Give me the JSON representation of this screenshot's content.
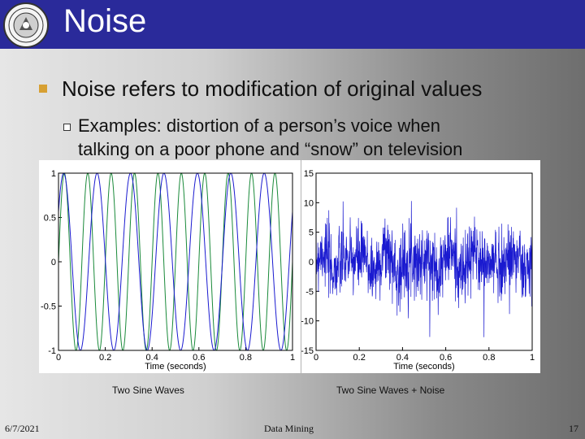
{
  "header": {
    "title": "Noise"
  },
  "bullets": {
    "main": "Noise refers to modification of original values",
    "sub_line1": "Examples: distortion of a person’s voice when",
    "sub_line2": "talking on a poor phone and “snow” on television"
  },
  "captions": {
    "left": "Two Sine Waves",
    "right": "Two Sine Waves + Noise"
  },
  "footer": {
    "date": "6/7/2021",
    "center": "Data Mining",
    "page": "17"
  },
  "colors": {
    "title_bar": "#2a2a9a",
    "bullet": "#d7a033",
    "series_blue": "#1a1ad0",
    "series_green": "#1a8a3a"
  },
  "icons": {
    "logo": "university-seal-icon"
  },
  "chart_data": [
    {
      "type": "line",
      "xlabel": "Time (seconds)",
      "ylabel": "",
      "xlim": [
        0,
        1
      ],
      "ylim": [
        -1,
        1
      ],
      "x_ticks": [
        "0",
        "0.2",
        "0.4",
        "0.6",
        "0.8",
        "1"
      ],
      "y_ticks": [
        "-1",
        "-0.5",
        "0",
        "0.5",
        "1"
      ],
      "series": [
        {
          "color": "#1a8a3a",
          "function": "sin",
          "frequency_hz": 10,
          "amplitude": 1
        },
        {
          "color": "#1a1ad0",
          "function": "sin",
          "frequency_hz": 7,
          "amplitude": 1
        }
      ]
    },
    {
      "type": "line",
      "xlabel": "Time (seconds)",
      "ylabel": "",
      "xlim": [
        0,
        1
      ],
      "ylim": [
        -15,
        15
      ],
      "x_ticks": [
        "0",
        "0.2",
        "0.4",
        "0.6",
        "0.8",
        "1"
      ],
      "y_ticks": [
        "-15",
        "-10",
        "-5",
        "0",
        "5",
        "10",
        "15"
      ],
      "series": [
        {
          "color": "#1a1ad0",
          "description_of_signal": "two sine waves plus noise",
          "noise_std": 3
        }
      ]
    }
  ]
}
